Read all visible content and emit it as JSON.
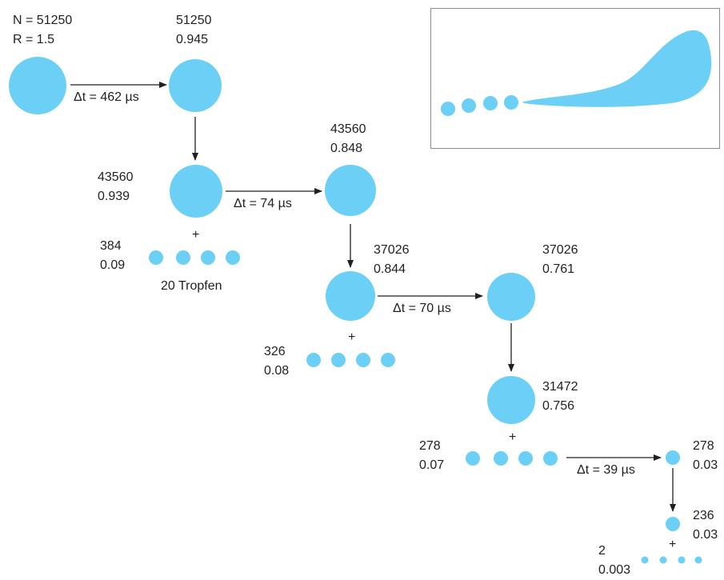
{
  "colors": {
    "drop": "#6ccff6",
    "arrow": "#231f20",
    "text": "#231f20",
    "frame": "#8c8c8c"
  },
  "steps": [
    {
      "n": "N = 51250",
      "r": "R = 1.5"
    },
    {
      "n": "51250",
      "r": "0.945"
    },
    {
      "n": "43560",
      "r": "0.939"
    },
    {
      "n": "384",
      "r": "0.09"
    },
    {
      "n": "43560",
      "r": "0.848"
    },
    {
      "n": "37026",
      "r": "0.844"
    },
    {
      "n": "326",
      "r": "0.08"
    },
    {
      "n": "37026",
      "r": "0.761"
    },
    {
      "n": "31472",
      "r": "0.756"
    },
    {
      "n": "278",
      "r": "0.07"
    },
    {
      "n": "278",
      "r": "0.03"
    },
    {
      "n": "236",
      "r": "0.03"
    },
    {
      "n": "2",
      "r": "0.003"
    }
  ],
  "transitions": [
    "Δt = 462 µs",
    "Δt = 74 µs",
    "Δt = 70 µs",
    "Δt = 39 µs"
  ],
  "plus": "+",
  "droplet_caption": "20 Tropfen"
}
